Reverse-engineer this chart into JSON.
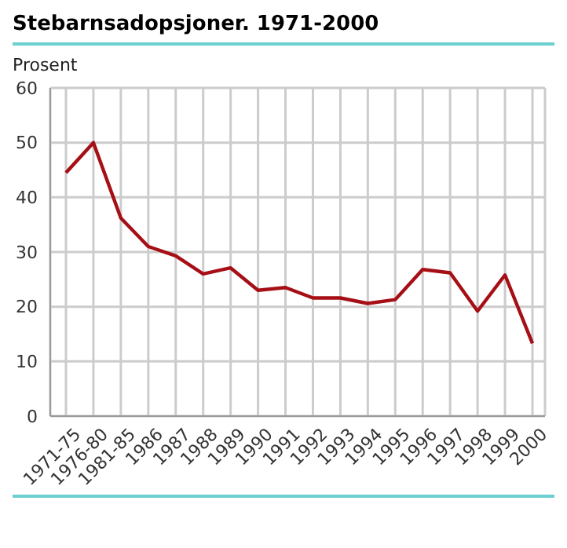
{
  "chart_data": {
    "type": "line",
    "title": "Stebarnsadopsjoner. 1971-2000",
    "ylabel": "Prosent",
    "categories": [
      "1971-75",
      "1976-80",
      "1981-85",
      "1986",
      "1987",
      "1988",
      "1989",
      "1990",
      "1991",
      "1992",
      "1993",
      "1994",
      "1995",
      "1996",
      "1997",
      "1998",
      "1999",
      "2000"
    ],
    "series": [
      {
        "color": "#a50f15",
        "values": [
          44.5,
          50,
          36.2,
          31,
          29.3,
          26,
          27.1,
          23,
          23.5,
          21.6,
          21.6,
          20.6,
          21.3,
          26.8,
          26.2,
          19.2,
          25.8,
          13.3
        ]
      }
    ],
    "ylim": [
      0,
      60
    ],
    "yticks": [
      0,
      10,
      20,
      30,
      40,
      50,
      60
    ],
    "grid": true,
    "legend": false,
    "marker": "none",
    "line_style": "solid"
  }
}
